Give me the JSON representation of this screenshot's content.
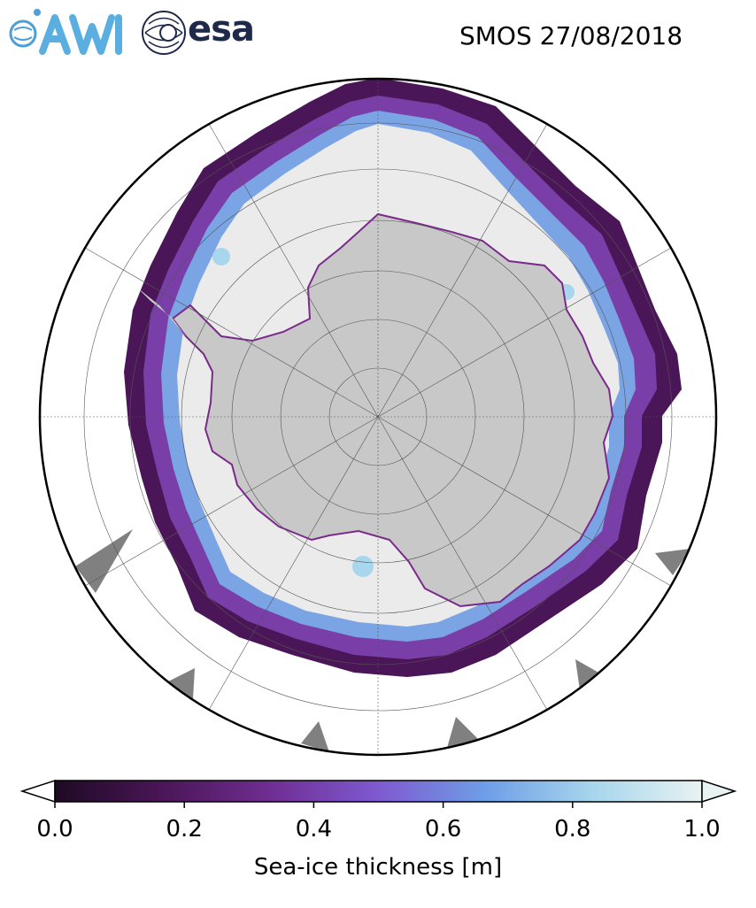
{
  "header": {
    "awi_logo_text": "AWI",
    "esa_logo_text": "esa",
    "title": "SMOS 27/08/2018"
  },
  "map": {
    "projection": "south-polar-stereographic",
    "land_color": "#c8c8c8",
    "sea_ice_background_color": "#ebebeb",
    "ocean_color": "#ffffff",
    "edge_colors": [
      "#2a0b35",
      "#5a1d6e",
      "#7b5bd0",
      "#6fa6e8",
      "#a8d8ef"
    ]
  },
  "colorbar": {
    "label": "Sea-ice thickness [m]",
    "ticks": [
      "0.0",
      "0.2",
      "0.4",
      "0.6",
      "0.8",
      "1.0"
    ],
    "tick_values": [
      0.0,
      0.2,
      0.4,
      0.6,
      0.8,
      1.0
    ],
    "range": [
      0.0,
      1.0
    ],
    "extend": "both",
    "colormap": [
      "#1e0a24",
      "#4a1657",
      "#6f2e92",
      "#7e5ad0",
      "#6e9ee6",
      "#a8d6ec",
      "#e8f2f2"
    ]
  }
}
